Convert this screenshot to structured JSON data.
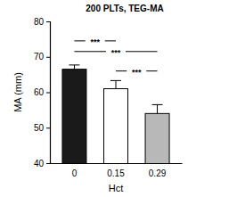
{
  "chart_data": {
    "type": "bar",
    "title": "200 PLTs, TEG-MA",
    "x_label": "Hct",
    "y_label": "MA (mm)",
    "categories": [
      "0",
      "0.15",
      "0.29"
    ],
    "values": [
      66.5,
      61,
      54
    ],
    "errors": [
      1.2,
      2.3,
      2.5
    ],
    "colors": [
      "#1a1a1a",
      "#ffffff",
      "#b8b8b8"
    ],
    "ylim": [
      40,
      80
    ],
    "yticks": [
      40,
      50,
      60,
      70,
      80
    ],
    "grid": false,
    "annotations": [
      {
        "text": "***",
        "from": "0",
        "to": "0.15",
        "y": 74.5
      },
      {
        "text": "***",
        "from": "0",
        "to": "0.29",
        "y": 71.5
      },
      {
        "text": "***",
        "from": "0.15",
        "to": "0.29",
        "y": 66
      }
    ]
  }
}
